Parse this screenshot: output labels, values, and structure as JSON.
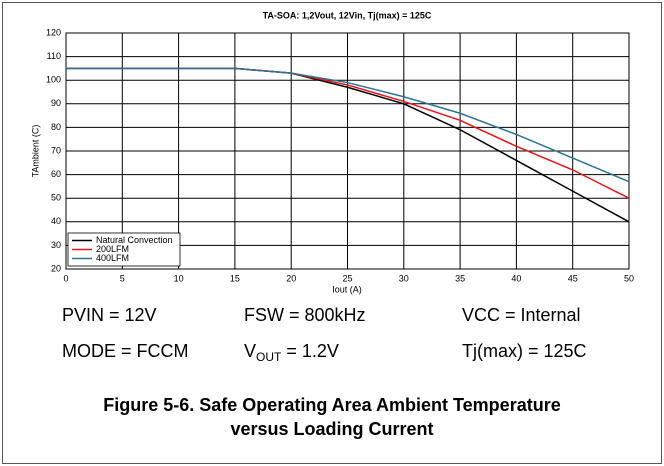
{
  "chart_data": {
    "type": "line",
    "title": "TA-SOA: 1,2Vout, 12Vin, Tj(max) = 125C",
    "xlabel": "Iout (A)",
    "ylabel": "TAmbient (C)",
    "x": [
      0,
      15,
      20,
      25,
      30,
      35,
      40,
      45,
      50
    ],
    "series": [
      {
        "name": "Natural Convection",
        "color": "#000000",
        "values": [
          105,
          105,
          103,
          97,
          90,
          79,
          66,
          53,
          40
        ]
      },
      {
        "name": "200LFM",
        "color": "#e8141b",
        "values": [
          105,
          105,
          103,
          98,
          91,
          83,
          72,
          62,
          50
        ]
      },
      {
        "name": "400LFM",
        "color": "#2f7391",
        "values": [
          105,
          105,
          103,
          99,
          93,
          86,
          77,
          67,
          57
        ]
      }
    ],
    "xlim": [
      0,
      50
    ],
    "xticks": [
      0,
      5,
      10,
      15,
      20,
      25,
      30,
      35,
      40,
      45,
      50
    ],
    "ylim": [
      20,
      120
    ],
    "yticks": [
      20,
      30,
      40,
      50,
      60,
      70,
      80,
      90,
      100,
      110,
      120
    ],
    "grid": true,
    "legend": "lower left"
  },
  "conditions": [
    {
      "text": "PVIN = 12V"
    },
    {
      "text": "FSW = 800kHz"
    },
    {
      "text": "VCC = Internal"
    },
    {
      "text": "MODE = FCCM"
    },
    {
      "base": "V",
      "sub": "OUT",
      "rest": " = 1.2V"
    },
    {
      "text": "Tj(max) = 125C"
    }
  ],
  "caption": "Figure 5-6. Safe Operating Area Ambient Temperature versus Loading Current"
}
